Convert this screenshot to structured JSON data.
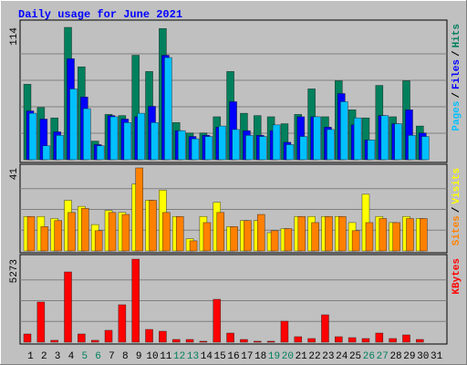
{
  "chart_data": [
    {
      "type": "bar",
      "title": "Daily usage for June 2021",
      "legend_separator": "/",
      "ylim": [
        0,
        114
      ],
      "yticks": [
        114
      ],
      "series": [
        {
          "name": "Hits",
          "color": "#00805c",
          "values": [
            65,
            45,
            36,
            114,
            80,
            16,
            39,
            38,
            90,
            76,
            113,
            32,
            23,
            23,
            37,
            76,
            40,
            38,
            37,
            31,
            39,
            61,
            37,
            68,
            43,
            36,
            64,
            37,
            68,
            29,
            0
          ]
        },
        {
          "name": "Files",
          "color": "#0000ff",
          "values": [
            42,
            35,
            24,
            87,
            54,
            13,
            38,
            35,
            37,
            46,
            90,
            25,
            20,
            21,
            28,
            50,
            25,
            21,
            25,
            15,
            37,
            37,
            28,
            57,
            30,
            17,
            38,
            31,
            43,
            23,
            0
          ]
        },
        {
          "name": "Pages",
          "color": "#00c0ff",
          "values": [
            40,
            12,
            21,
            61,
            44,
            12,
            37,
            32,
            40,
            32,
            88,
            25,
            18,
            20,
            29,
            26,
            21,
            20,
            30,
            13,
            20,
            37,
            26,
            50,
            36,
            17,
            38,
            31,
            21,
            20,
            0
          ]
        }
      ]
    },
    {
      "type": "bar",
      "ylim": [
        0,
        41
      ],
      "yticks": [
        41
      ],
      "series": [
        {
          "name": "Visits",
          "color": "#ffff00",
          "values": [
            17,
            17,
            16,
            25,
            22,
            13,
            20,
            19,
            33,
            25,
            30,
            17,
            6,
            17,
            24,
            12,
            15,
            15,
            9,
            11,
            17,
            17,
            17,
            17,
            14,
            28,
            17,
            14,
            17,
            16,
            0
          ]
        },
        {
          "name": "Sites",
          "color": "#ff8000",
          "values": [
            17,
            12,
            15,
            19,
            21,
            10,
            19,
            18,
            41,
            25,
            19,
            17,
            5,
            14,
            19,
            12,
            15,
            18,
            10,
            11,
            17,
            14,
            17,
            17,
            10,
            14,
            16,
            14,
            16,
            16,
            0
          ]
        }
      ]
    },
    {
      "type": "bar",
      "ylim": [
        0,
        5273
      ],
      "yticks": [
        5273
      ],
      "categories": [
        "1",
        "2",
        "3",
        "4",
        "5",
        "6",
        "7",
        "8",
        "9",
        "10",
        "11",
        "12",
        "13",
        "14",
        "15",
        "16",
        "17",
        "18",
        "19",
        "20",
        "21",
        "22",
        "23",
        "24",
        "25",
        "26",
        "27",
        "28",
        "29",
        "30",
        "31"
      ],
      "category_colors": [
        "#000000",
        "#000000",
        "#000000",
        "#000000",
        "#00805c",
        "#00805c",
        "#000000",
        "#000000",
        "#000000",
        "#000000",
        "#000000",
        "#00805c",
        "#00805c",
        "#000000",
        "#000000",
        "#000000",
        "#000000",
        "#000000",
        "#00805c",
        "#00805c",
        "#000000",
        "#000000",
        "#000000",
        "#000000",
        "#000000",
        "#00805c",
        "#00805c",
        "#000000",
        "#000000",
        "#000000",
        "#000000"
      ],
      "series": [
        {
          "name": "KBytes",
          "color": "#ff0000",
          "values": [
            522,
            2550,
            120,
            4462,
            522,
            120,
            754,
            2376,
            5273,
            811,
            696,
            174,
            174,
            60,
            2723,
            580,
            174,
            60,
            60,
            1333,
            348,
            232,
            1738,
            348,
            290,
            232,
            580,
            232,
            464,
            174,
            0
          ]
        }
      ]
    }
  ]
}
